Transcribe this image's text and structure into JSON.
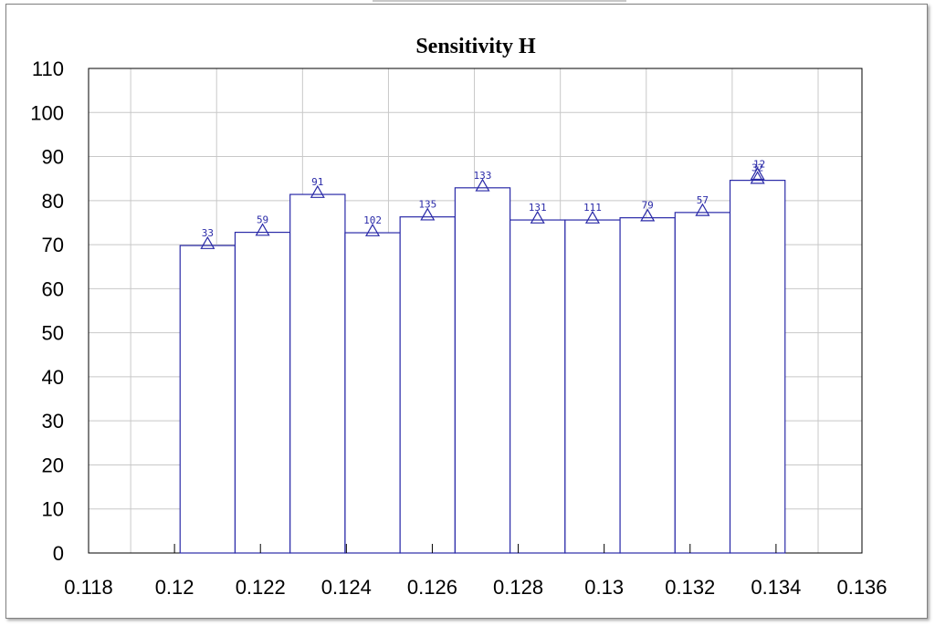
{
  "chart_data": {
    "type": "bar",
    "title": "Sensitivity H",
    "xlabel": "",
    "ylabel": "",
    "xlim": [
      0.118,
      0.136
    ],
    "ylim": [
      0,
      110
    ],
    "x_ticks": [
      0.118,
      0.12,
      0.122,
      0.124,
      0.126,
      0.128,
      0.13,
      0.132,
      0.134,
      0.136
    ],
    "x_tick_labels": [
      "0.118",
      "0.12",
      "0.122",
      "0.124",
      "0.126",
      "0.128",
      "0.13",
      "0.132",
      "0.134",
      "0.136"
    ],
    "y_ticks": [
      0,
      10,
      20,
      30,
      40,
      50,
      60,
      70,
      80,
      90,
      100,
      110
    ],
    "y_tick_labels": [
      "0",
      "10",
      "20",
      "30",
      "40",
      "50",
      "60",
      "70",
      "80",
      "90",
      "100",
      "110"
    ],
    "grid": true,
    "bar_color": "#2a2aa8",
    "marker": "triangle",
    "bins": [
      {
        "x0": 0.12013,
        "x1": 0.12141,
        "value": 69.8,
        "label": "33"
      },
      {
        "x0": 0.12141,
        "x1": 0.12269,
        "value": 72.8,
        "label": "59"
      },
      {
        "x0": 0.12269,
        "x1": 0.12397,
        "value": 81.4,
        "label": "91"
      },
      {
        "x0": 0.12397,
        "x1": 0.12525,
        "value": 72.7,
        "label": "102"
      },
      {
        "x0": 0.12525,
        "x1": 0.12653,
        "value": 76.3,
        "label": "135"
      },
      {
        "x0": 0.12653,
        "x1": 0.12781,
        "value": 82.9,
        "label": "133"
      },
      {
        "x0": 0.12781,
        "x1": 0.12909,
        "value": 75.6,
        "label": "131"
      },
      {
        "x0": 0.12909,
        "x1": 0.13037,
        "value": 75.6,
        "label": "111"
      },
      {
        "x0": 0.13037,
        "x1": 0.13165,
        "value": 76.1,
        "label": "79"
      },
      {
        "x0": 0.13165,
        "x1": 0.13293,
        "value": 77.3,
        "label": "57"
      },
      {
        "x0": 0.13293,
        "x1": 0.13421,
        "value": 84.6,
        "label": "32"
      }
    ],
    "extra_markers": [
      {
        "x": 0.13357,
        "value": 85.5,
        "label": "12"
      }
    ]
  }
}
